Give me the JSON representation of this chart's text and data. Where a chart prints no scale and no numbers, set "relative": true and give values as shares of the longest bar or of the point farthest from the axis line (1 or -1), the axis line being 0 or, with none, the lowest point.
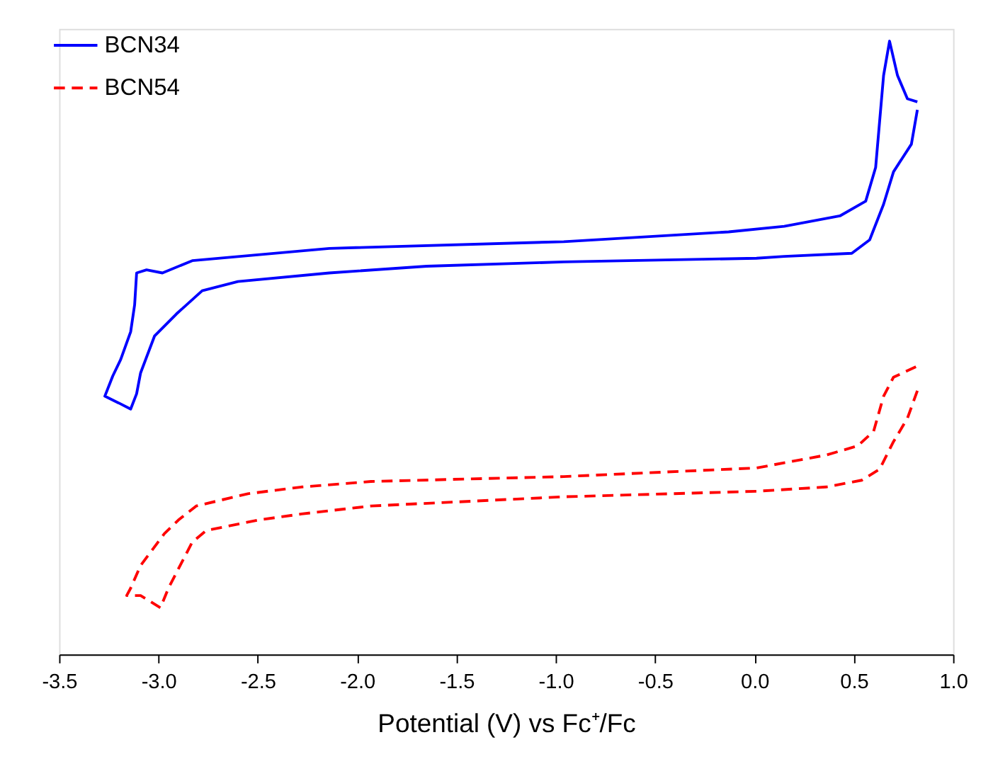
{
  "chart_data": {
    "type": "line",
    "relative": true,
    "xlabel": "Potential (V) vs Fc⁺/Fc",
    "xlim": [
      -3.5,
      1.0
    ],
    "xticks": [
      -3.5,
      {
        "value": -3,
        "label": "-3.0"
      },
      -2.5,
      {
        "value": -2,
        "label": "-2.0"
      },
      -1.5,
      {
        "value": -1,
        "label": "-1.0"
      },
      -0.5,
      {
        "value": 0,
        "label": "0.0"
      },
      0.5,
      {
        "value": 1,
        "label": "1.0"
      }
    ],
    "grid": false,
    "legend": "top left",
    "marker": "none",
    "series": [
      {
        "name": "BCN34",
        "color": "#0000ff",
        "line_style": "solid",
        "x": [
          0.82,
          0.79,
          0.7,
          0.65,
          0.58,
          0.49,
          0.15,
          0.01,
          -0.96,
          -1.65,
          -2.14,
          -2.6,
          -2.78,
          -2.91,
          -3.02,
          -3.09,
          -3.11,
          -3.14,
          -3.2,
          -3.27,
          -3.23,
          -3.19,
          -3.14,
          -3.12,
          -3.11,
          -3.06,
          -2.98,
          -2.83,
          -2.14,
          -0.96,
          -0.13,
          0.15,
          0.43,
          0.56,
          0.61,
          0.65,
          0.68,
          0.72,
          0.77,
          0.82
        ],
        "values": [
          0.888,
          0.832,
          0.787,
          0.734,
          0.676,
          0.654,
          0.649,
          0.646,
          0.64,
          0.633,
          0.622,
          0.608,
          0.593,
          0.555,
          0.519,
          0.459,
          0.425,
          0.4,
          0.41,
          0.421,
          0.454,
          0.481,
          0.526,
          0.57,
          0.622,
          0.627,
          0.622,
          0.642,
          0.662,
          0.673,
          0.689,
          0.698,
          0.715,
          0.739,
          0.794,
          0.944,
          1.0,
          0.944,
          0.906,
          0.901
        ]
      },
      {
        "name": "BCN54",
        "color": "#ff0000",
        "line_style": "dashed",
        "x": [
          0.82,
          0.77,
          0.7,
          0.63,
          0.54,
          0.36,
          0.01,
          -0.96,
          -1.93,
          -2.28,
          -2.5,
          -2.76,
          -2.83,
          -2.95,
          -2.99,
          -3.09,
          -3.16,
          -3.14,
          -3.09,
          -2.97,
          -2.9,
          -2.81,
          -2.55,
          -2.28,
          -1.93,
          -0.96,
          0.01,
          0.36,
          0.52,
          0.6,
          0.65,
          0.7,
          0.82
        ],
        "values": [
          0.43,
          0.385,
          0.347,
          0.302,
          0.284,
          0.273,
          0.266,
          0.257,
          0.242,
          0.229,
          0.219,
          0.202,
          0.183,
          0.108,
          0.076,
          0.096,
          0.096,
          0.108,
          0.145,
          0.197,
          0.219,
          0.242,
          0.262,
          0.273,
          0.282,
          0.29,
          0.304,
          0.325,
          0.34,
          0.364,
          0.421,
          0.452,
          0.47
        ]
      }
    ]
  }
}
